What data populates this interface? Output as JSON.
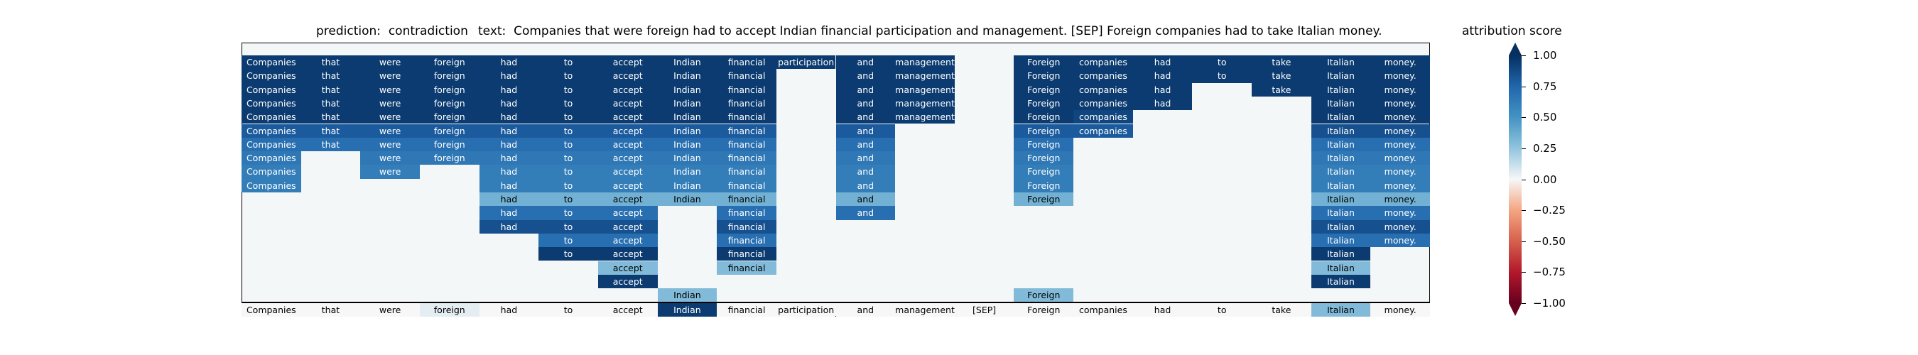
{
  "chart_data": {
    "type": "heatmap",
    "prediction_label": "prediction:  contradiction",
    "text_label": "text:  Companies that were foreign had to accept Indian financial participation and management. [SEP] Foreign companies had to take Italian money.",
    "tokens": [
      "Companies",
      "that",
      "were",
      "foreign",
      "had",
      "to",
      "accept",
      "Indian",
      "financial",
      "participation",
      "and",
      "management.",
      "[SEP]",
      "Foreign",
      "companies",
      "had",
      "to",
      "take",
      "Italian",
      "money."
    ],
    "rows": [
      [
        0.95,
        0.95,
        0.95,
        0.95,
        0.95,
        0.95,
        0.95,
        0.95,
        0.95,
        0.95,
        0.95,
        0.95,
        null,
        0.95,
        0.95,
        0.95,
        0.95,
        0.95,
        0.95,
        0.95
      ],
      [
        0.95,
        0.95,
        0.95,
        0.95,
        0.95,
        0.95,
        0.95,
        0.95,
        0.95,
        null,
        0.95,
        0.95,
        null,
        0.95,
        0.95,
        0.95,
        0.95,
        0.95,
        0.95,
        0.95
      ],
      [
        0.95,
        0.95,
        0.95,
        0.95,
        0.95,
        0.95,
        0.95,
        0.95,
        0.95,
        null,
        0.95,
        0.95,
        null,
        0.95,
        0.95,
        0.95,
        null,
        0.95,
        0.95,
        0.95
      ],
      [
        0.95,
        0.95,
        0.95,
        0.95,
        0.95,
        0.95,
        0.95,
        0.95,
        0.95,
        null,
        0.95,
        0.95,
        null,
        0.95,
        0.95,
        0.95,
        null,
        null,
        0.95,
        0.95
      ],
      [
        0.95,
        0.95,
        0.95,
        0.95,
        0.95,
        0.95,
        0.95,
        0.95,
        0.95,
        null,
        0.95,
        0.95,
        null,
        0.95,
        0.9,
        null,
        null,
        null,
        0.95,
        0.95
      ],
      [
        0.8,
        0.8,
        0.8,
        0.8,
        0.8,
        0.8,
        0.8,
        0.8,
        0.8,
        null,
        0.8,
        null,
        null,
        0.8,
        0.8,
        null,
        null,
        null,
        0.85,
        0.85
      ],
      [
        0.7,
        0.7,
        0.7,
        0.7,
        0.7,
        0.7,
        0.7,
        0.7,
        0.7,
        null,
        0.7,
        null,
        null,
        0.7,
        null,
        null,
        null,
        null,
        0.7,
        0.7
      ],
      [
        0.65,
        null,
        0.65,
        0.65,
        0.65,
        0.65,
        0.65,
        0.65,
        0.65,
        null,
        0.65,
        null,
        null,
        0.65,
        null,
        null,
        null,
        null,
        0.65,
        0.65
      ],
      [
        0.62,
        null,
        0.62,
        null,
        0.62,
        0.62,
        0.62,
        0.62,
        0.62,
        null,
        0.62,
        null,
        null,
        0.62,
        null,
        null,
        null,
        null,
        0.62,
        0.62
      ],
      [
        0.62,
        null,
        null,
        null,
        0.62,
        0.62,
        0.62,
        0.62,
        0.62,
        null,
        0.62,
        null,
        null,
        0.62,
        null,
        null,
        null,
        null,
        0.62,
        0.62
      ],
      [
        null,
        null,
        null,
        null,
        0.35,
        0.35,
        0.35,
        0.35,
        0.35,
        null,
        0.35,
        null,
        null,
        0.35,
        null,
        null,
        null,
        null,
        0.35,
        0.35
      ],
      [
        null,
        null,
        null,
        null,
        0.7,
        0.7,
        0.7,
        null,
        0.7,
        null,
        0.7,
        null,
        null,
        null,
        null,
        null,
        null,
        null,
        0.7,
        0.7
      ],
      [
        null,
        null,
        null,
        null,
        0.85,
        0.85,
        0.85,
        null,
        0.85,
        null,
        null,
        null,
        null,
        null,
        null,
        null,
        null,
        null,
        0.85,
        0.85
      ],
      [
        null,
        null,
        null,
        null,
        null,
        0.7,
        0.7,
        null,
        0.7,
        null,
        null,
        null,
        null,
        null,
        null,
        null,
        null,
        null,
        0.7,
        0.7
      ],
      [
        null,
        null,
        null,
        null,
        null,
        0.95,
        0.95,
        null,
        0.95,
        null,
        null,
        null,
        null,
        null,
        null,
        null,
        null,
        null,
        0.95,
        null
      ],
      [
        null,
        null,
        null,
        null,
        null,
        null,
        0.3,
        null,
        0.3,
        null,
        null,
        null,
        null,
        null,
        null,
        null,
        null,
        null,
        0.3,
        null
      ],
      [
        null,
        null,
        null,
        null,
        null,
        null,
        0.95,
        null,
        null,
        null,
        null,
        null,
        null,
        null,
        null,
        null,
        null,
        null,
        0.95,
        null
      ],
      [
        null,
        null,
        null,
        null,
        null,
        null,
        null,
        0.3,
        null,
        null,
        null,
        null,
        null,
        0.3,
        null,
        null,
        null,
        null,
        null,
        null
      ]
    ],
    "bottom_row": [
      0,
      0,
      0,
      0.05,
      0,
      0,
      0,
      0.95,
      0,
      0,
      0,
      0,
      0,
      0,
      0,
      0,
      0,
      0,
      0.3,
      0
    ],
    "colorbar": {
      "title": "attribution score",
      "range": [
        -1,
        1
      ],
      "ticks": [
        "1.00",
        "0.75",
        "0.50",
        "0.25",
        "0.00",
        "−0.25",
        "−0.50",
        "−0.75",
        "−1.00"
      ],
      "colormap": "RdBu"
    }
  }
}
